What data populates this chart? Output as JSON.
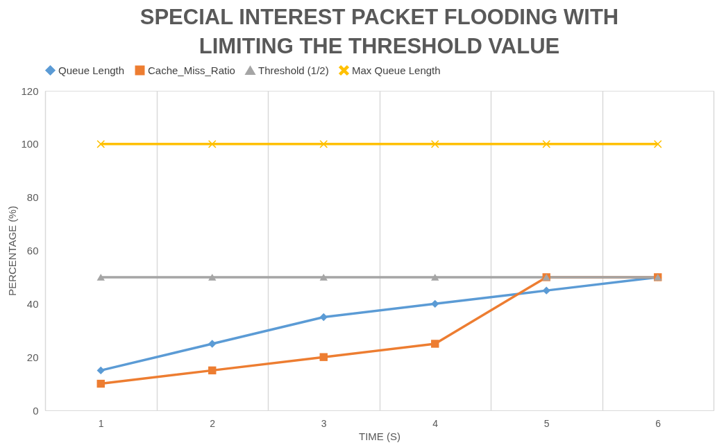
{
  "chart_data": {
    "type": "line",
    "title": "SPECIAL INTEREST PACKET FLOODING WITH LIMITING THE THRESHOLD VALUE",
    "xlabel": "TIME (S)",
    "ylabel": "PERCENTAGE (%)",
    "categories": [
      "1",
      "2",
      "3",
      "4",
      "5",
      "6"
    ],
    "series": [
      {
        "name": "Queue Length",
        "color": "#5b9bd5",
        "marker": "diamond",
        "values": [
          15,
          25,
          35,
          40,
          45,
          50
        ]
      },
      {
        "name": "Cache_Miss_Ratio",
        "color": "#ed7d31",
        "marker": "square",
        "values": [
          10,
          15,
          20,
          25,
          50,
          50
        ]
      },
      {
        "name": "Threshold (1/2)",
        "color": "#a5a5a5",
        "marker": "triangle",
        "values": [
          50,
          50,
          50,
          50,
          50,
          50
        ]
      },
      {
        "name": "Max Queue Length",
        "color": "#ffc000",
        "marker": "cross",
        "values": [
          100,
          100,
          100,
          100,
          100,
          100
        ]
      }
    ],
    "ylim": [
      0,
      120
    ],
    "yticks": [
      0,
      20,
      40,
      60,
      80,
      100,
      120
    ],
    "grid": "x",
    "legend": "top",
    "line_style": "solid"
  }
}
